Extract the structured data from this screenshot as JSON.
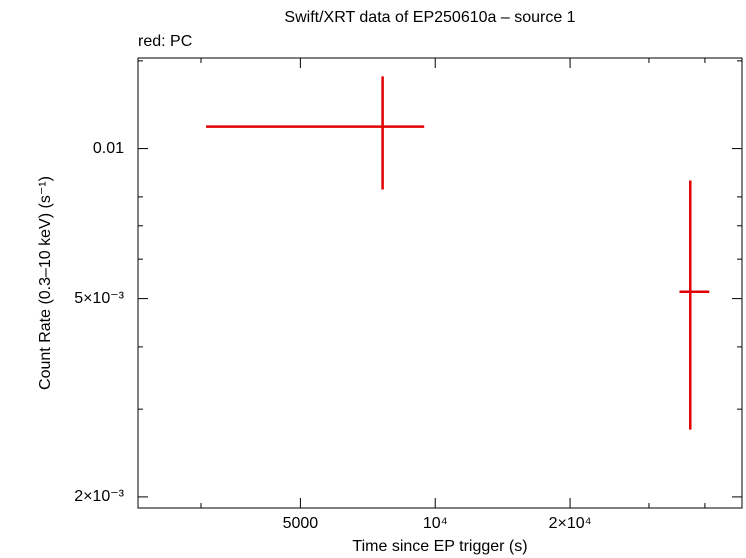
{
  "chart_data": {
    "type": "scatter",
    "title": "Swift/XRT data of EP250610a – source 1",
    "subtitle": "red: PC",
    "x_label": "Time since EP trigger (s)",
    "y_label": "Count Rate (0.3–10 keV) (s⁻¹)",
    "xscale": "log",
    "yscale": "log",
    "xlim": [
      2170,
      48400
    ],
    "ylim": [
      0.0019,
      0.0152
    ],
    "xticks": [
      5000,
      {
        "value": 10000,
        "label": "10⁴"
      },
      {
        "value": 20000,
        "label": "2×10⁴"
      }
    ],
    "yticks": [
      0.01,
      {
        "value": 0.005,
        "label": "5×10⁻³"
      },
      {
        "value": 0.002,
        "label": "2×10⁻³"
      }
    ],
    "xminorticks": [
      3000,
      30000,
      40000
    ],
    "yminorticks": [
      0.015,
      0.008,
      0.007,
      0.006,
      0.004,
      0.003
    ],
    "series": [
      {
        "name": "PC",
        "color": "#e00000",
        "x": [
          7630,
          37100
        ],
        "xlow": [
          3080,
          35100
        ],
        "xhigh": [
          9450,
          40900
        ],
        "values": [
          0.01107,
          0.00516
        ],
        "ylow": [
          0.00828,
          0.00273
        ],
        "yhigh": [
          0.01396,
          0.00863
        ]
      }
    ]
  }
}
